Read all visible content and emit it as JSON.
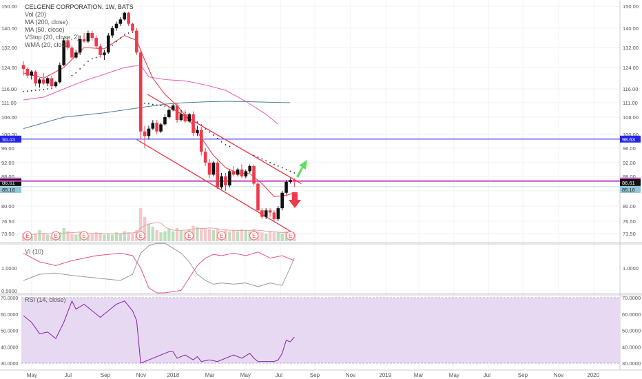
{
  "chart_data": {
    "type": "candlestick",
    "title": "CELGENE CORPORATION, 1W, BATS",
    "legend": [
      "Vol (20)",
      "MA (200, close)",
      "MA (50, close)",
      "VStop (20, close, 2)",
      "WMA (20, close)"
    ],
    "x_ticks": [
      "May",
      "Jul",
      "Sep",
      "Nov",
      "2018",
      "Mar",
      "May",
      "Jul",
      "Sep",
      "Nov",
      "2019",
      "Mar",
      "May",
      "Jul",
      "Sep",
      "Nov",
      "2020"
    ],
    "price_ticks": [
      "150.00",
      "140.00",
      "132.00",
      "124.00",
      "116.00",
      "111.00",
      "106.00",
      "100.00",
      "96.00",
      "92.00",
      "88.00",
      "84.00",
      "80.00",
      "76.50",
      "73.50"
    ],
    "price_badges": [
      {
        "label": "98.63",
        "color": "#2424e8"
      },
      {
        "label": "86.72",
        "color": "#c34fc3"
      },
      {
        "label": "86.61",
        "color": "#111111"
      },
      {
        "label": "85.16",
        "color": "#8fc6d8"
      }
    ],
    "earnings_marker": "E",
    "earnings_count": 8,
    "vi_label": "VI (10)",
    "vi_ticks": [
      "1.0000",
      "0.5000"
    ],
    "rsi_label": "RSI (14, close)",
    "rsi_ticks": [
      "70.0000",
      "60.0000",
      "50.0000",
      "40.0000",
      "30.0000"
    ],
    "colors": {
      "up": "#111111",
      "down": "#ef3a4c",
      "ma200": "#4f7f9a",
      "ma50": "#e85ab0",
      "wma": "#e8323c",
      "hline_blue": "#2424e8",
      "hline_magenta": "#c34fc3",
      "rsi": "#8a2bb5",
      "rsi_band": "#e8d9f3",
      "arrow_up": "#5de05d",
      "arrow_down": "#ef3a4c"
    },
    "candles": [
      [
        125.0,
        126.5,
        121.0,
        123.5
      ],
      [
        123.5,
        124.0,
        120.0,
        121.0
      ],
      [
        121.0,
        123.0,
        119.5,
        122.5
      ],
      [
        122.5,
        123.0,
        117.0,
        118.0
      ],
      [
        118.0,
        120.0,
        116.5,
        119.5
      ],
      [
        119.5,
        122.0,
        117.5,
        118.0
      ],
      [
        118.0,
        120.5,
        117.0,
        120.0
      ],
      [
        120.0,
        121.0,
        116.0,
        117.0
      ],
      [
        117.0,
        119.0,
        116.5,
        118.5
      ],
      [
        118.5,
        126.0,
        118.0,
        125.0
      ],
      [
        125.0,
        136.0,
        124.5,
        135.0
      ],
      [
        135.0,
        136.0,
        131.0,
        132.0
      ],
      [
        132.0,
        133.0,
        127.0,
        128.0
      ],
      [
        128.0,
        131.0,
        127.5,
        130.0
      ],
      [
        130.0,
        137.0,
        129.0,
        135.5
      ],
      [
        135.5,
        138.0,
        134.0,
        134.5
      ],
      [
        134.5,
        139.0,
        134.0,
        138.0
      ],
      [
        138.0,
        139.0,
        135.0,
        136.0
      ],
      [
        136.0,
        137.0,
        131.5,
        132.5
      ],
      [
        132.5,
        133.5,
        128.0,
        129.0
      ],
      [
        129.0,
        131.0,
        127.0,
        130.0
      ],
      [
        130.0,
        138.0,
        129.5,
        137.0
      ],
      [
        137.0,
        141.0,
        136.0,
        140.0
      ],
      [
        140.0,
        143.0,
        139.0,
        142.0
      ],
      [
        142.0,
        145.0,
        141.0,
        144.0
      ],
      [
        144.0,
        147.5,
        143.5,
        147.0
      ],
      [
        147.0,
        147.5,
        141.0,
        142.0
      ],
      [
        142.0,
        142.5,
        138.0,
        139.0
      ],
      [
        139.0,
        140.0,
        129.0,
        130.0
      ],
      [
        130.0,
        131.0,
        98.5,
        101.0
      ],
      [
        101.0,
        103.0,
        96.0,
        99.5
      ],
      [
        99.5,
        103.0,
        98.5,
        102.0
      ],
      [
        102.0,
        105.0,
        101.5,
        104.0
      ],
      [
        104.0,
        105.0,
        100.0,
        101.0
      ],
      [
        101.0,
        104.0,
        100.5,
        103.5
      ],
      [
        103.5,
        107.0,
        103.0,
        106.0
      ],
      [
        106.0,
        109.0,
        105.5,
        108.5
      ],
      [
        108.5,
        110.5,
        108.0,
        110.0
      ],
      [
        110.0,
        111.0,
        104.0,
        105.0
      ],
      [
        105.0,
        108.0,
        104.5,
        107.0
      ],
      [
        107.0,
        108.5,
        104.0,
        104.5
      ],
      [
        104.5,
        107.5,
        104.0,
        107.0
      ],
      [
        107.0,
        108.0,
        99.5,
        100.5
      ],
      [
        100.5,
        103.0,
        99.5,
        101.5
      ],
      [
        101.5,
        102.5,
        94.0,
        95.0
      ],
      [
        95.0,
        96.0,
        91.0,
        92.0
      ],
      [
        92.0,
        93.0,
        87.5,
        88.5
      ],
      [
        88.5,
        92.5,
        88.0,
        92.0
      ],
      [
        92.0,
        92.5,
        84.5,
        85.0
      ],
      [
        85.0,
        89.0,
        84.5,
        88.0
      ],
      [
        88.0,
        89.0,
        84.0,
        85.5
      ],
      [
        85.5,
        90.0,
        85.0,
        89.5
      ],
      [
        89.5,
        91.0,
        88.0,
        88.5
      ],
      [
        88.5,
        90.5,
        88.0,
        90.0
      ],
      [
        90.0,
        91.5,
        87.5,
        88.0
      ],
      [
        88.0,
        90.0,
        87.5,
        89.5
      ],
      [
        89.5,
        91.5,
        89.0,
        91.0
      ],
      [
        91.0,
        91.5,
        85.5,
        86.0
      ],
      [
        86.0,
        87.0,
        78.5,
        79.0
      ],
      [
        79.0,
        79.5,
        77.0,
        77.5
      ],
      [
        77.5,
        79.5,
        77.0,
        79.0
      ],
      [
        79.0,
        79.5,
        77.5,
        78.5
      ],
      [
        78.5,
        79.0,
        76.5,
        77.0
      ],
      [
        77.0,
        80.0,
        76.5,
        79.5
      ],
      [
        79.5,
        84.0,
        79.0,
        83.5
      ],
      [
        83.5,
        87.0,
        83.0,
        86.5
      ],
      [
        86.5,
        87.5,
        86.0,
        87.0
      ],
      [
        87.0,
        87.5,
        85.0,
        86.61
      ]
    ],
    "vstop": [
      [
        0,
        115.0
      ],
      [
        1,
        115.2
      ],
      [
        2,
        115.3
      ],
      [
        3,
        115.5
      ],
      [
        4,
        115.6
      ],
      [
        5,
        115.8
      ],
      [
        6,
        116.0
      ],
      [
        7,
        116.2
      ],
      [
        12,
        121.0
      ],
      [
        13,
        122.0
      ],
      [
        14,
        123.5
      ],
      [
        15,
        125.0
      ],
      [
        16,
        126.5
      ],
      [
        17,
        127.5
      ],
      [
        18,
        128.0
      ],
      [
        19,
        128.5
      ],
      [
        20,
        129.0
      ],
      [
        21,
        131.0
      ],
      [
        22,
        133.0
      ],
      [
        23,
        134.5
      ],
      [
        24,
        136.0
      ],
      [
        25,
        137.5
      ],
      [
        26,
        138.0
      ],
      [
        27,
        138.5
      ],
      [
        29,
        111.0
      ],
      [
        30,
        110.8
      ],
      [
        31,
        110.6
      ],
      [
        32,
        110.4
      ],
      [
        33,
        110.2
      ],
      [
        34,
        110.0
      ],
      [
        35,
        109.8
      ],
      [
        36,
        109.5
      ],
      [
        37,
        109.2
      ],
      [
        38,
        108.8
      ],
      [
        39,
        108.2
      ],
      [
        40,
        107.5
      ],
      [
        41,
        106.5
      ],
      [
        42,
        105.3
      ],
      [
        43,
        104.3
      ],
      [
        44,
        103.3
      ],
      [
        45,
        101.9
      ],
      [
        46,
        100.8
      ],
      [
        47,
        99.8
      ],
      [
        48,
        98.8
      ],
      [
        49,
        97.8
      ],
      [
        50,
        97.0
      ],
      [
        51,
        96.5
      ],
      [
        57,
        94.0
      ],
      [
        58,
        93.5
      ],
      [
        59,
        93.0
      ],
      [
        60,
        92.5
      ],
      [
        61,
        92.0
      ],
      [
        62,
        91.5
      ],
      [
        63,
        91.0
      ],
      [
        64,
        90.5
      ],
      [
        65,
        90.0
      ],
      [
        66,
        89.5
      ],
      [
        67,
        89.0
      ]
    ],
    "wma": [
      [
        0,
        122.0
      ],
      [
        5,
        120.0
      ],
      [
        10,
        124.0
      ],
      [
        15,
        132.0
      ],
      [
        20,
        131.5
      ],
      [
        25,
        137.0
      ],
      [
        28,
        135.0
      ],
      [
        30,
        127.0
      ],
      [
        32,
        120.0
      ],
      [
        35,
        114.0
      ],
      [
        38,
        110.0
      ],
      [
        41,
        105.0
      ],
      [
        44,
        99.0
      ],
      [
        47,
        94.0
      ],
      [
        50,
        90.5
      ],
      [
        53,
        89.0
      ],
      [
        56,
        88.8
      ],
      [
        59,
        86.0
      ],
      [
        62,
        82.5
      ],
      [
        65,
        82.8
      ],
      [
        67,
        83.5
      ]
    ],
    "ma50": [
      [
        0,
        112.0
      ],
      [
        5,
        113.0
      ],
      [
        10,
        116.0
      ],
      [
        15,
        119.0
      ],
      [
        20,
        121.5
      ],
      [
        25,
        124.0
      ],
      [
        29,
        125.0
      ],
      [
        31,
        120.5
      ],
      [
        35,
        119.5
      ],
      [
        40,
        119.0
      ],
      [
        45,
        117.5
      ],
      [
        50,
        115.5
      ],
      [
        55,
        111.5
      ],
      [
        60,
        107.0
      ],
      [
        63,
        103.5
      ]
    ],
    "ma200": [
      [
        0,
        102.0
      ],
      [
        10,
        106.0
      ],
      [
        20,
        107.5
      ],
      [
        25,
        108.5
      ],
      [
        30,
        109.5
      ],
      [
        35,
        110.5
      ],
      [
        40,
        111.0
      ],
      [
        45,
        111.3
      ],
      [
        50,
        111.5
      ],
      [
        55,
        111.4
      ],
      [
        60,
        111.2
      ],
      [
        66,
        111.0
      ]
    ],
    "volume": [
      7,
      6,
      5,
      7,
      10,
      7,
      6,
      5,
      6,
      8,
      12,
      9,
      7,
      6,
      8,
      7,
      6,
      7,
      8,
      7,
      6,
      7,
      6,
      8,
      7,
      9,
      8,
      7,
      10,
      30,
      22,
      16,
      13,
      10,
      8,
      9,
      11,
      9,
      12,
      10,
      9,
      11,
      14,
      13,
      12,
      11,
      11,
      10,
      11,
      9,
      10,
      9,
      10,
      9,
      11,
      10,
      9,
      11,
      9,
      8,
      7,
      9,
      8,
      8,
      7,
      9,
      8,
      7
    ],
    "earnings_idx": [
      1,
      8,
      15,
      29,
      41,
      49,
      57,
      66
    ],
    "vi_plus": [
      [
        0,
        1.12
      ],
      [
        4,
        1.05
      ],
      [
        8,
        1.02
      ],
      [
        12,
        1.06
      ],
      [
        15,
        1.08
      ],
      [
        18,
        1.1
      ],
      [
        21,
        1.11
      ],
      [
        24,
        1.12
      ],
      [
        27,
        1.1
      ],
      [
        29,
        1.0
      ],
      [
        31,
        0.84
      ],
      [
        33,
        0.8
      ],
      [
        35,
        0.8
      ],
      [
        37,
        0.81
      ],
      [
        39,
        0.82
      ],
      [
        41,
        0.92
      ],
      [
        43,
        1.02
      ],
      [
        45,
        1.08
      ],
      [
        47,
        1.11
      ],
      [
        49,
        1.1
      ],
      [
        52,
        1.12
      ],
      [
        55,
        1.1
      ],
      [
        58,
        1.13
      ],
      [
        61,
        1.08
      ],
      [
        64,
        1.1
      ],
      [
        67,
        1.06
      ]
    ],
    "vi_minus": [
      [
        0,
        0.9
      ],
      [
        4,
        0.95
      ],
      [
        8,
        0.96
      ],
      [
        12,
        0.94
      ],
      [
        15,
        0.93
      ],
      [
        18,
        0.92
      ],
      [
        21,
        0.91
      ],
      [
        24,
        0.9
      ],
      [
        27,
        0.95
      ],
      [
        29,
        1.12
      ],
      [
        31,
        1.18
      ],
      [
        33,
        1.2
      ],
      [
        35,
        1.2
      ],
      [
        37,
        1.16
      ],
      [
        39,
        1.12
      ],
      [
        41,
        1.05
      ],
      [
        43,
        0.95
      ],
      [
        45,
        0.9
      ],
      [
        47,
        0.87
      ],
      [
        49,
        0.88
      ],
      [
        52,
        0.87
      ],
      [
        55,
        0.88
      ],
      [
        58,
        0.85
      ],
      [
        61,
        0.88
      ],
      [
        64,
        0.86
      ],
      [
        67,
        1.08
      ]
    ],
    "rsi": [
      [
        0,
        59
      ],
      [
        2,
        55
      ],
      [
        4,
        48
      ],
      [
        6,
        49
      ],
      [
        8,
        45
      ],
      [
        10,
        55
      ],
      [
        12,
        68
      ],
      [
        13,
        63
      ],
      [
        15,
        66
      ],
      [
        17,
        62
      ],
      [
        19,
        58
      ],
      [
        21,
        62
      ],
      [
        23,
        66
      ],
      [
        25,
        68
      ],
      [
        27,
        62
      ],
      [
        28,
        56
      ],
      [
        29,
        30
      ],
      [
        30,
        31
      ],
      [
        32,
        33
      ],
      [
        34,
        35
      ],
      [
        36,
        37
      ],
      [
        37,
        37
      ],
      [
        38,
        33
      ],
      [
        40,
        35
      ],
      [
        42,
        32
      ],
      [
        43,
        34
      ],
      [
        44,
        31
      ],
      [
        46,
        32
      ],
      [
        48,
        31
      ],
      [
        50,
        33
      ],
      [
        52,
        35
      ],
      [
        54,
        33
      ],
      [
        56,
        36
      ],
      [
        57,
        33
      ],
      [
        58,
        31
      ],
      [
        60,
        31
      ],
      [
        62,
        31
      ],
      [
        63,
        32
      ],
      [
        64,
        36
      ],
      [
        65,
        44
      ],
      [
        66,
        43
      ],
      [
        67,
        46
      ]
    ]
  }
}
